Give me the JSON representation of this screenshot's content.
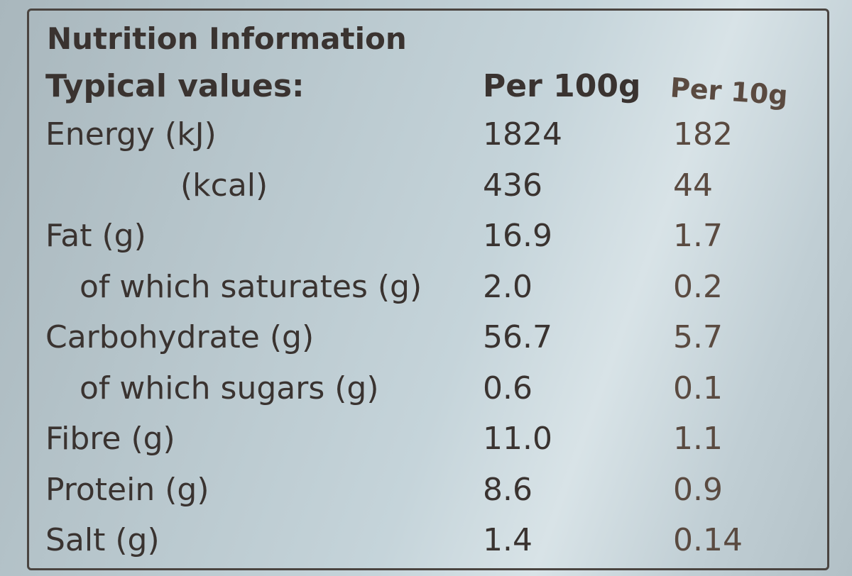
{
  "header": {
    "title": "Nutrition Information"
  },
  "table": {
    "columns": [
      "Typical values:",
      "Per 100g",
      "Per 10g"
    ],
    "rows": [
      [
        "Energy (kJ)",
        "1824",
        "182"
      ],
      [
        "(kcal)",
        "436",
        "44"
      ],
      [
        "Fat (g)",
        "16.9",
        "1.7"
      ],
      [
        "of which saturates (g)",
        "2.0",
        "0.2"
      ],
      [
        "Carbohydrate (g)",
        "56.7",
        "5.7"
      ],
      [
        "of which sugars (g)",
        "0.6",
        "0.1"
      ],
      [
        "Fibre (g)",
        "11.0",
        "1.1"
      ],
      [
        "Protein (g)",
        "8.6",
        "0.9"
      ],
      [
        "Salt (g)",
        "1.4",
        "0.14"
      ]
    ]
  }
}
